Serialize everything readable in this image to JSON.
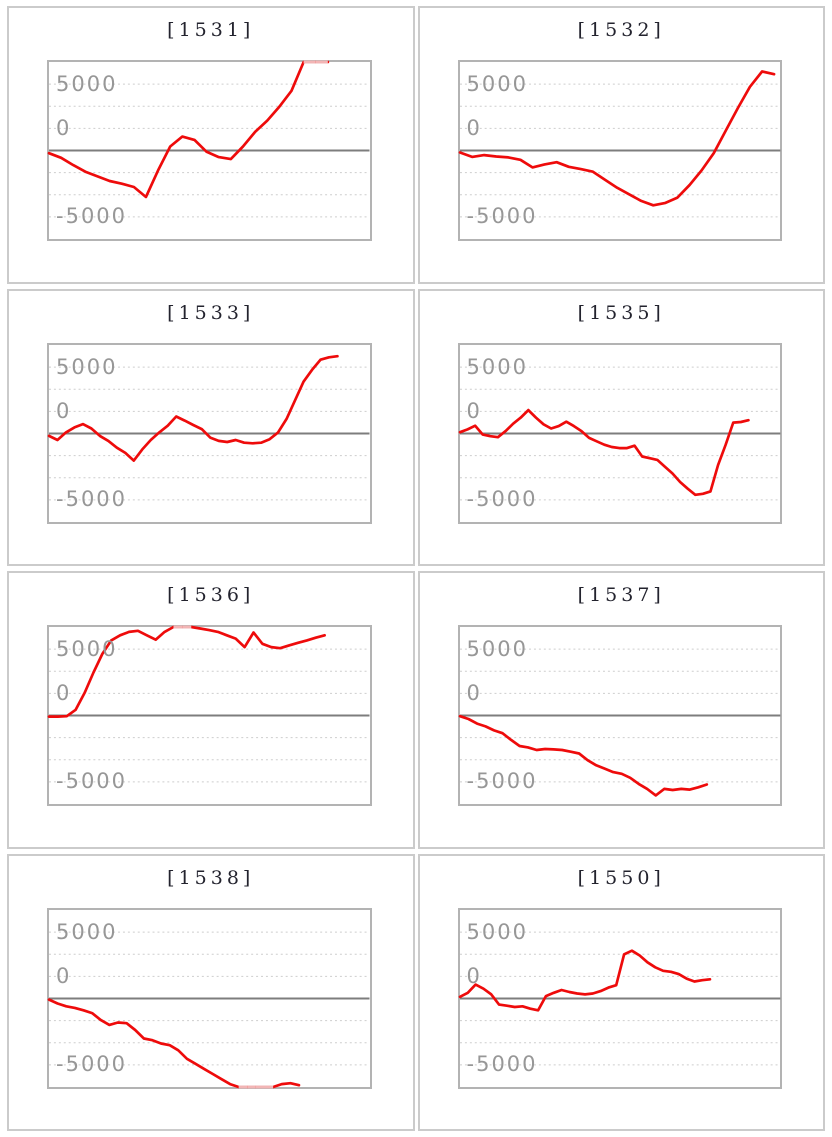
{
  "colors": {
    "series": "#ee0b0b",
    "series_clipped": "#f2b5b5",
    "grid_dotted": "#cdcdcd",
    "zero_line": "#7d7d7d",
    "plot_border": "#b3b3b3",
    "panel_border": "#cbcbcb",
    "axis_label": "#979797",
    "title_text": "#23232e",
    "background": "#ffffff"
  },
  "axis": {
    "tick_labels": [
      "5000",
      "0",
      "-5000"
    ],
    "tick_values": [
      5000,
      0,
      -5000
    ],
    "ylim": [
      -6667,
      6667
    ],
    "gridline_step": 1667,
    "grid_style": "dotted",
    "zero_axis": "solid"
  },
  "chart_data": [
    {
      "type": "line",
      "id": "1531",
      "title": "[1531]",
      "x_span": 0.87,
      "values": [
        -200,
        -550,
        -1100,
        -1600,
        -1950,
        -2300,
        -2500,
        -2750,
        -3500,
        -1500,
        300,
        1050,
        800,
        -100,
        -500,
        -650,
        300,
        1400,
        2250,
        3300,
        4500,
        6900,
        7100,
        7200
      ]
    },
    {
      "type": "line",
      "id": "1532",
      "title": "[1532]",
      "x_span": 0.98,
      "values": [
        -150,
        -480,
        -350,
        -450,
        -520,
        -700,
        -1270,
        -1050,
        -880,
        -1230,
        -1400,
        -1600,
        -2200,
        -2800,
        -3300,
        -3800,
        -4130,
        -3950,
        -3550,
        -2600,
        -1500,
        -200,
        1500,
        3200,
        4800,
        5950,
        5750
      ]
    },
    {
      "type": "line",
      "id": "1533",
      "title": "[1533]",
      "x_span": 0.9,
      "values": [
        -180,
        -490,
        80,
        460,
        710,
        380,
        -180,
        -560,
        -1070,
        -1460,
        -2040,
        -1200,
        -490,
        80,
        590,
        1280,
        970,
        640,
        330,
        -310,
        -560,
        -640,
        -490,
        -690,
        -740,
        -690,
        -430,
        80,
        1100,
        2500,
        3900,
        4790,
        5560,
        5740,
        5820
      ]
    },
    {
      "type": "line",
      "id": "1535",
      "title": "[1535]",
      "x_span": 0.9,
      "values": [
        100,
        310,
        590,
        -80,
        -200,
        -280,
        180,
        740,
        1200,
        1760,
        1200,
        690,
        380,
        560,
        890,
        560,
        180,
        -330,
        -590,
        -840,
        -1020,
        -1100,
        -1100,
        -920,
        -1730,
        -1860,
        -1990,
        -2500,
        -3010,
        -3650,
        -4160,
        -4620,
        -4540,
        -4360,
        -2370,
        -840,
        820,
        870,
        1000
      ]
    },
    {
      "type": "line",
      "id": "1536",
      "title": "[1536]",
      "x_span": 0.86,
      "values": [
        -80,
        -80,
        -50,
        430,
        1700,
        3240,
        4640,
        5660,
        6040,
        6300,
        6380,
        6040,
        5710,
        6300,
        6680,
        6760,
        6680,
        6550,
        6430,
        6300,
        6040,
        5790,
        5150,
        6250,
        5400,
        5150,
        5070,
        5280,
        5480,
        5660,
        5860,
        6040
      ]
    },
    {
      "type": "line",
      "id": "1537",
      "title": "[1537]",
      "x_span": 0.77,
      "values": [
        -50,
        -260,
        -610,
        -820,
        -1120,
        -1330,
        -1840,
        -2300,
        -2400,
        -2600,
        -2520,
        -2550,
        -2600,
        -2730,
        -2860,
        -3370,
        -3750,
        -4000,
        -4260,
        -4390,
        -4690,
        -5150,
        -5530,
        -6020,
        -5530,
        -5610,
        -5530,
        -5580,
        -5410,
        -5200
      ]
    },
    {
      "type": "line",
      "id": "1538",
      "title": "[1538]",
      "x_span": 0.78,
      "values": [
        -80,
        -380,
        -590,
        -710,
        -890,
        -1100,
        -1610,
        -1990,
        -1810,
        -1860,
        -2370,
        -3010,
        -3140,
        -3390,
        -3520,
        -3900,
        -4540,
        -4920,
        -5300,
        -5690,
        -6070,
        -6450,
        -6710,
        -6900,
        -6950,
        -6950,
        -6850,
        -6450,
        -6380,
        -6530
      ]
    },
    {
      "type": "line",
      "id": "1550",
      "title": "[1550]",
      "x_span": 0.78,
      "values": [
        130,
        430,
        1050,
        740,
        310,
        -460,
        -540,
        -640,
        -590,
        -770,
        -890,
        180,
        430,
        640,
        490,
        380,
        310,
        380,
        560,
        820,
        1000,
        3320,
        3600,
        3240,
        2730,
        2350,
        2090,
        2010,
        1840,
        1500,
        1280,
        1380,
        1450
      ]
    }
  ]
}
